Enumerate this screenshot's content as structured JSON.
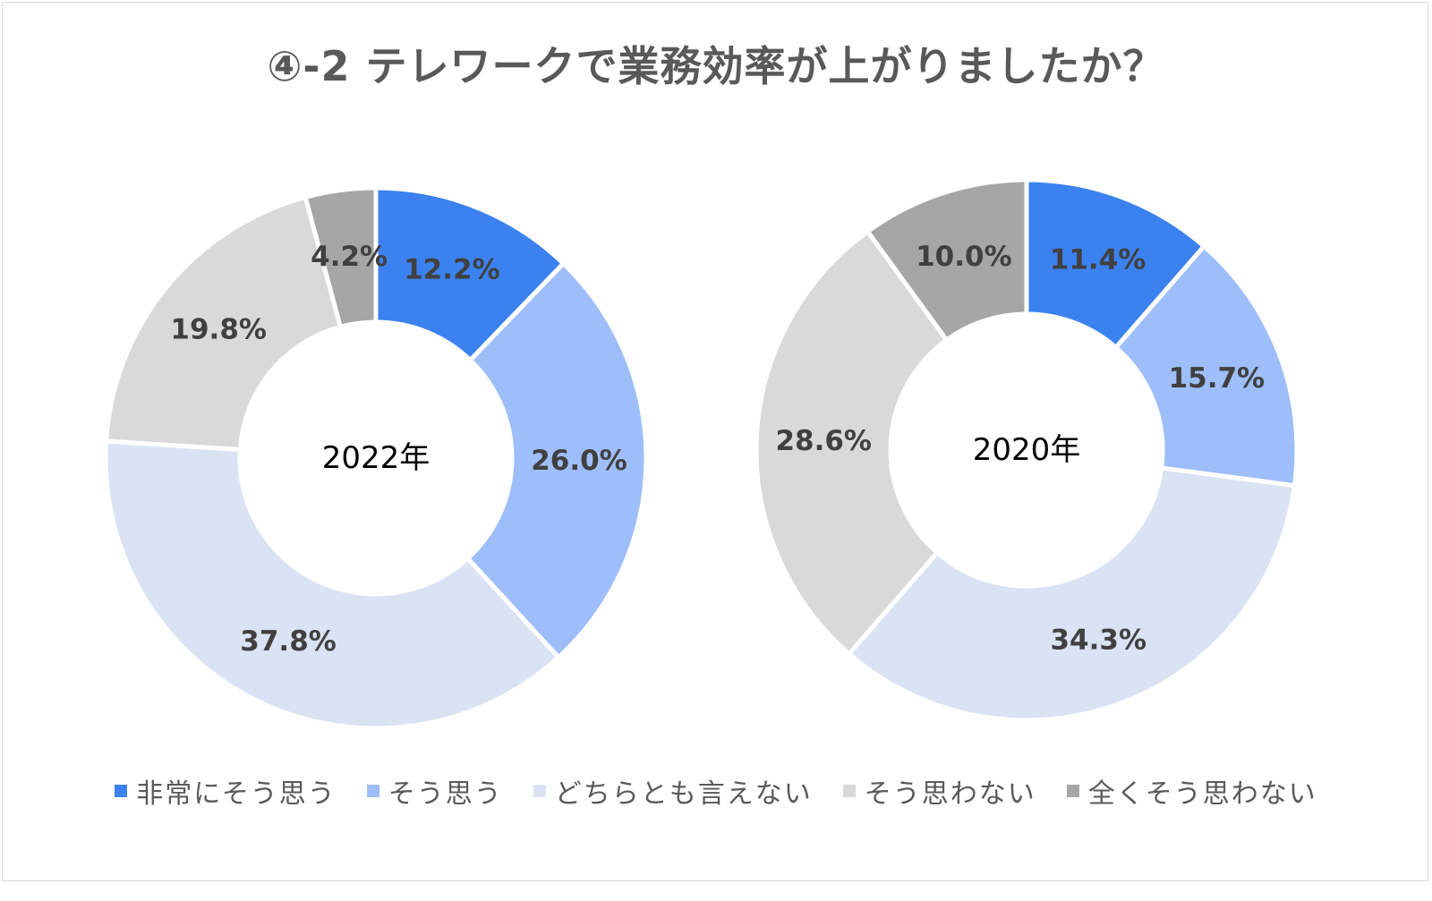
{
  "title": "④-2 テレワークで業務効率が上がりましたか？",
  "chart_data": [
    {
      "type": "donut",
      "center_label": "2022年",
      "categories": [
        "非常にそう思う",
        "そう思う",
        "どちらとも言えない",
        "そう思わない",
        "全くそう思わない"
      ],
      "values": [
        12.2,
        26.0,
        37.8,
        19.8,
        4.2
      ],
      "labels": [
        "12.2%",
        "26.0%",
        "37.8%",
        "19.8%",
        "4.2%"
      ]
    },
    {
      "type": "donut",
      "center_label": "2020年",
      "categories": [
        "非常にそう思う",
        "そう思う",
        "どちらとも言えない",
        "そう思わない",
        "全くそう思わない"
      ],
      "values": [
        11.4,
        15.7,
        34.3,
        28.6,
        10.0
      ],
      "labels": [
        "11.4%",
        "15.7%",
        "34.3%",
        "28.6%",
        "10.0%"
      ]
    }
  ],
  "legend": [
    {
      "label": "非常にそう思う",
      "color": "#3B82F0"
    },
    {
      "label": "そう思う",
      "color": "#9DBEF8"
    },
    {
      "label": "どちらとも言えない",
      "color": "#DAE3F3"
    },
    {
      "label": "そう思わない",
      "color": "#D9D9D9"
    },
    {
      "label": "全くそう思わない",
      "color": "#A6A6A6"
    }
  ]
}
